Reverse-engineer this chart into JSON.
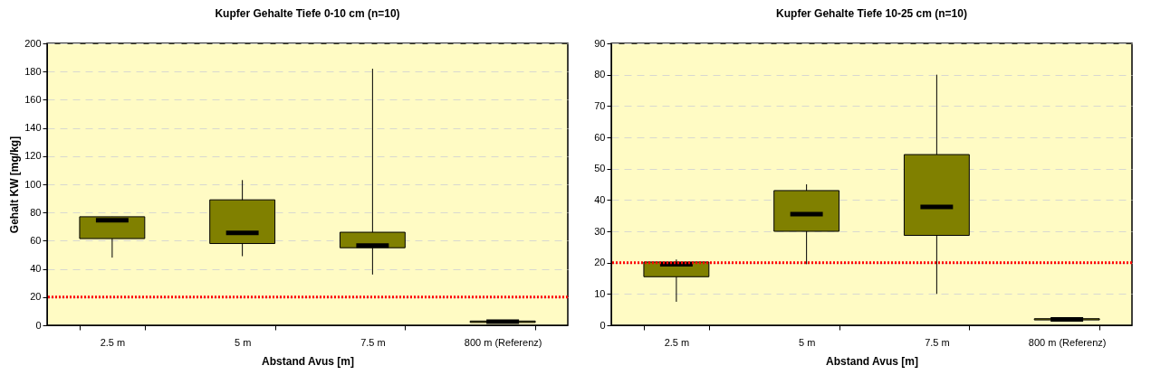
{
  "chart_data": [
    {
      "type": "box",
      "title": "Kupfer Gehalte Tiefe 0-10 cm  (n=10)",
      "xlabel": "Abstand Avus [m]",
      "ylabel": "Gehalt KW [mg/kg]",
      "categories": [
        "2.5 m",
        "5 m",
        "7.5 m",
        "800 m (Referenz)"
      ],
      "color": "#808000",
      "boxes": [
        {
          "low": 48,
          "q1": 61.5,
          "median": 74.5,
          "q3": 77,
          "high": 77
        },
        {
          "low": 49,
          "q1": 58,
          "median": 65.5,
          "q3": 89,
          "high": 103
        },
        {
          "low": 36,
          "q1": 55,
          "median": 56.5,
          "q3": 66,
          "high": 182
        },
        {
          "low": 2,
          "q1": 2,
          "median": 2.5,
          "q3": 3,
          "high": 3
        }
      ],
      "ylim": [
        0,
        200
      ],
      "yticks": [
        0,
        20,
        40,
        60,
        80,
        100,
        120,
        140,
        160,
        180,
        200
      ],
      "grid": "y",
      "ref_lines": [
        {
          "axis": "y",
          "value": 20,
          "label": null,
          "color": "#ff0000",
          "line_style": "dotted"
        }
      ]
    },
    {
      "type": "box",
      "title": "Kupfer Gehalte Tiefe 10-25 cm  (n=10)",
      "xlabel": "Abstand Avus [m]",
      "categories": [
        "2.5 m",
        "5 m",
        "7.5 m",
        "800 m (Referenz)"
      ],
      "color": "#808000",
      "boxes": [
        {
          "low": 7.5,
          "q1": 15.5,
          "median": 19.5,
          "q3": 20.2,
          "high": 21
        },
        {
          "low": 19.5,
          "q1": 30,
          "median": 35.5,
          "q3": 43,
          "high": 45
        },
        {
          "low": 10,
          "q1": 28.7,
          "median": 37.8,
          "q3": 54.5,
          "high": 80
        },
        {
          "low": 1.7,
          "q1": 1.7,
          "median": 1.9,
          "q3": 2.1,
          "high": 2.1
        }
      ],
      "ylim": [
        0,
        90
      ],
      "yticks": [
        0,
        10,
        20,
        30,
        40,
        50,
        60,
        70,
        80,
        90
      ],
      "grid": "y",
      "ref_lines": [
        {
          "axis": "y",
          "value": 20,
          "label": null,
          "color": "#ff0000",
          "line_style": "dotted"
        }
      ]
    }
  ]
}
